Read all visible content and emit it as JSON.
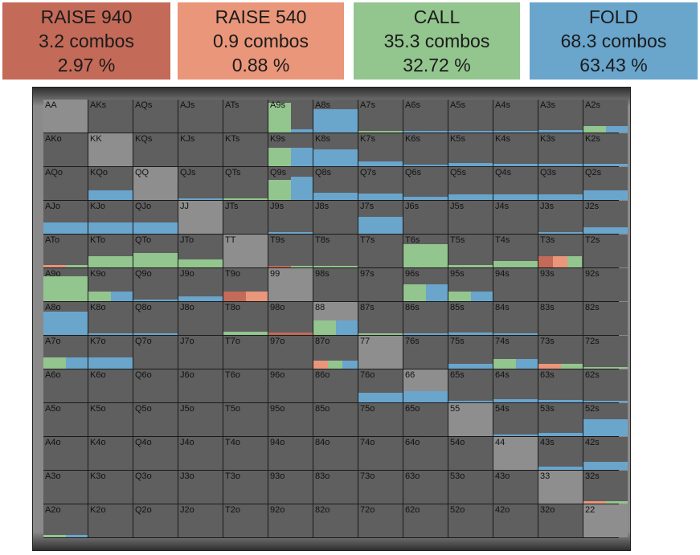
{
  "summary": [
    {
      "id": "raise940",
      "title": "RAISE 940",
      "combos": "3.2 combos",
      "percent": "2.97 %",
      "color": "#c46a58"
    },
    {
      "id": "raise540",
      "title": "RAISE 540",
      "combos": "0.9 combos",
      "percent": "0.88 %",
      "color": "#e9967a"
    },
    {
      "id": "call",
      "title": "CALL",
      "combos": "35.3 combos",
      "percent": "32.72 %",
      "color": "#93c58e"
    },
    {
      "id": "fold",
      "title": "FOLD",
      "combos": "68.3 combos",
      "percent": "63.43 %",
      "color": "#6aa5cc"
    }
  ],
  "colors": {
    "raise940": "#c46a58",
    "raise540": "#e9967a",
    "call": "#93c58e",
    "fold": "#6aa5cc",
    "cell": "#5f5f5f",
    "pair": "#8e8e8e"
  },
  "ranks": [
    "A",
    "K",
    "Q",
    "J",
    "T",
    "9",
    "8",
    "7",
    "6",
    "5",
    "4",
    "3",
    "2"
  ],
  "strategy": {
    "A9s": {
      "call": 0.9,
      "fold": 0.1
    },
    "A8s": {
      "fold": 0.7
    },
    "A7s": {
      "call": 0.06
    },
    "A6s": {
      "fold": 0.04
    },
    "A5s": {
      "fold": 0.04
    },
    "A4s": {
      "fold": 0.06
    },
    "A3s": {
      "fold": 0.08
    },
    "A2s": {
      "call": 0.2,
      "fold": 0.2
    },
    "K9s": {
      "call": 0.55,
      "fold": 0.55
    },
    "K8s": {
      "fold": 0.5
    },
    "K7s": {
      "fold": 0.15
    },
    "K6s": {
      "fold": 0.05
    },
    "K5s": {
      "fold": 0.1
    },
    "K4s": {
      "fold": 0.08
    },
    "K3s": {
      "fold": 0.08
    },
    "K2s": {
      "fold": 0.08
    },
    "KQo": {
      "fold": 0.3
    },
    "Q9s": {
      "call": 0.6,
      "fold": 0.7
    },
    "Q8s": {
      "fold": 0.22
    },
    "Q7s": {
      "fold": 0.2
    },
    "Q6s": {
      "fold": 0.1
    },
    "Q5s": {
      "fold": 0.16
    },
    "Q4s": {
      "fold": 0.16
    },
    "Q3s": {
      "fold": 0.16
    },
    "Q2s": {
      "fold": 0.3
    },
    "QJs": {
      "fold": 0.04
    },
    "QTs": {
      "call": 0.04
    },
    "AJo": {
      "fold": 0.35
    },
    "KJo": {
      "fold": 0.35
    },
    "QJo": {
      "fold": 0.35
    },
    "J9s": {
      "fold": 0.04
    },
    "J7s": {
      "fold": 0.5
    },
    "J3s": {
      "fold": 0.04
    },
    "J2s": {
      "fold": 0.2
    },
    "ATo": {
      "raise540": 0.08,
      "call": 0.08
    },
    "KTo": {
      "call": 0.35
    },
    "QTo": {
      "call": 0.45
    },
    "JTo": {
      "call": 0.25
    },
    "T9s": {
      "raise940": 0.06,
      "call": 0.06
    },
    "T8s": {
      "call": 0.04
    },
    "T6s": {
      "call": 0.7
    },
    "T5s": {
      "call": 0.08
    },
    "T4s": {
      "call": 0.2
    },
    "T3s": {
      "raise940": 0.35,
      "raise540": 0.35,
      "call": 0.35
    },
    "A9o": {
      "call": 0.75
    },
    "K9o": {
      "call": 0.3,
      "fold": 0.3
    },
    "Q9o": {
      "fold": 0.06
    },
    "J9o": {
      "fold": 0.15
    },
    "T9o": {
      "raise940": 0.3,
      "raise540": 0.3
    },
    "96s": {
      "call": 0.5,
      "fold": 0.5
    },
    "95s": {
      "call": 0.3,
      "fold": 0.3
    },
    "A8o": {
      "fold": 0.7
    },
    "K8o": {
      "fold": 0.06
    },
    "Q8o": {
      "fold": 0.04
    },
    "T8o": {
      "call": 0.1
    },
    "98o": {
      "raise940": 0.08
    },
    "88": {
      "call": 0.45,
      "fold": 0.45
    },
    "87s": {
      "call": 0.06
    },
    "86s": {
      "fold": 0.04
    },
    "85s": {
      "fold": 0.08
    },
    "84s": {
      "fold": 0.04
    },
    "A7o": {
      "call": 0.35,
      "fold": 0.35
    },
    "K7o": {
      "fold": 0.35
    },
    "87o": {
      "raise540": 0.25,
      "call": 0.25,
      "fold": 0.25
    },
    "75s": {
      "fold": 0.15
    },
    "74s": {
      "call": 0.3,
      "fold": 0.3
    },
    "73s": {
      "raise540": 0.15,
      "call": 0.15
    },
    "72s": {
      "call": 0.04
    },
    "76o": {
      "fold": 0.3
    },
    "66": {
      "fold": 0.35
    },
    "65s": {
      "fold": 0.04
    },
    "64s": {
      "fold": 0.1
    },
    "63s": {
      "fold": 0.08
    },
    "62s": {
      "fold": 0.04
    },
    "54s": {
      "fold": 0.06
    },
    "53s": {
      "fold": 0.1
    },
    "52s": {
      "fold": 0.5
    },
    "43s": {
      "fold": 0.1
    },
    "42s": {
      "fold": 0.25
    },
    "32s": {
      "raise540": 0.08,
      "call": 0.08
    },
    "A2o": {
      "call": 0.08,
      "fold": 0.08
    }
  }
}
